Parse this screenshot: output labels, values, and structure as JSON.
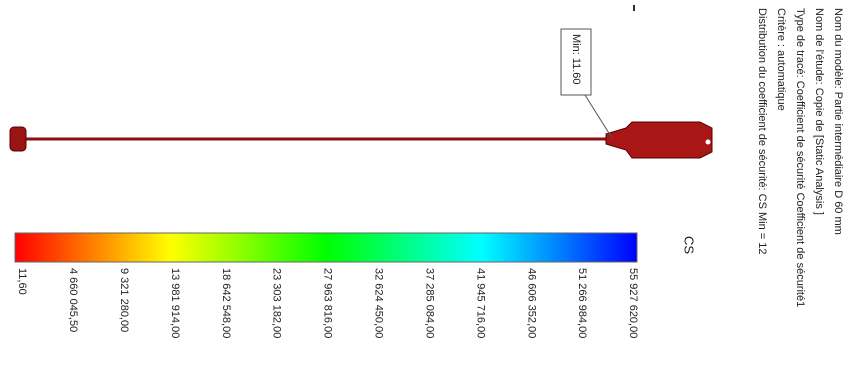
{
  "info": [
    "Nom du modèle: Partie intermédiaire D 60 mm",
    "Nom de l'étude: Copie de [Static Analysis ]",
    "Type de tracé: Coefficient de sécurité Coefficient de sécurité1",
    "Critère : automatique",
    "Distribution du coefficient de sécurité: CS Min = 12"
  ],
  "min_label": "Min: 11.60",
  "legend": {
    "title": "CS",
    "labels": [
      "11,60",
      "4 660 045,50",
      "9 321 280,00",
      "13 981 914,00",
      "18 642 548,00",
      "23 303 182,00",
      "27 963 816,00",
      "32 624 450,00",
      "37 285 084,00",
      "41 945 716,00",
      "46 606 352,00",
      "51 266 984,00",
      "55 927 620,00"
    ]
  }
}
